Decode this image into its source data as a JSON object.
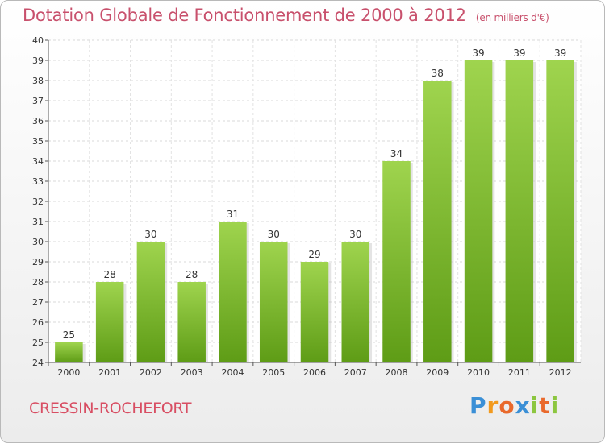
{
  "chart_data": {
    "type": "bar",
    "title": "Dotation Globale de Fonctionnement de 2000 à 2012",
    "unit_note": "(en milliers d'€)",
    "categories": [
      "2000",
      "2001",
      "2002",
      "2003",
      "2004",
      "2005",
      "2006",
      "2007",
      "2008",
      "2009",
      "2010",
      "2011",
      "2012"
    ],
    "values": [
      25,
      28,
      30,
      28,
      31,
      30,
      29,
      30,
      34,
      38,
      39,
      39,
      39
    ],
    "ylim": [
      24,
      40
    ],
    "yticks": [
      24,
      25,
      26,
      27,
      28,
      29,
      30,
      31,
      32,
      33,
      34,
      35,
      36,
      37,
      38,
      39,
      40
    ],
    "xlabel": "",
    "ylabel": "",
    "grid": true,
    "bar_color_top": "#9fd44e",
    "bar_color_bottom": "#5e9c16"
  },
  "commune": "CRESSIN-ROCHEFORT",
  "brand": {
    "letters": [
      "P",
      "r",
      "o",
      "x",
      "i",
      "t",
      "i"
    ]
  }
}
